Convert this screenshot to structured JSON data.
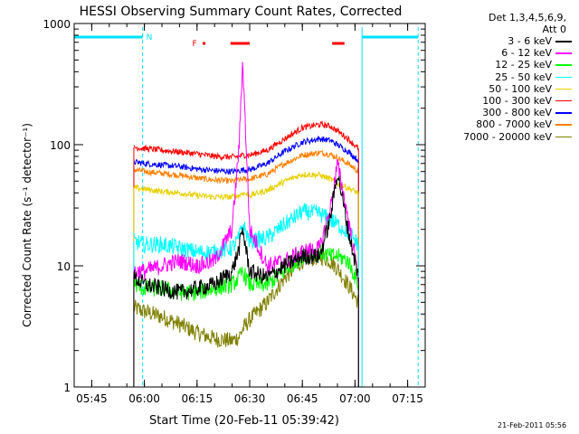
{
  "chart_data": {
    "type": "line",
    "title": "HESSI Observing Summary Count Rates, Corrected",
    "xlabel": "Start Time (20-Feb-11 05:39:42)",
    "ylabel": "Corrected Count Rate (s⁻¹ detector⁻¹)",
    "yscale": "log",
    "ylim": [
      1,
      1000
    ],
    "xlim": [
      "05:40",
      "07:20"
    ],
    "x_ticks": [
      "05:45",
      "06:00",
      "06:15",
      "06:30",
      "06:45",
      "07:00",
      "07:15"
    ],
    "y_ticks": [
      "1",
      "10",
      "100",
      "1000"
    ],
    "legend_position": "right",
    "legend_header": [
      "Det 1,3,4,5,6,9,",
      "Att 0"
    ],
    "times": [
      "05:57",
      "06:00",
      "06:05",
      "06:10",
      "06:15",
      "06:20",
      "06:25",
      "06:27",
      "06:28",
      "06:30",
      "06:35",
      "06:40",
      "06:45",
      "06:50",
      "06:53",
      "06:55",
      "06:58",
      "07:01"
    ],
    "series": [
      {
        "name": "3 - 6 keV",
        "color": "#000000",
        "values": [
          8,
          7,
          6.5,
          6,
          6.5,
          7,
          9,
          14,
          20,
          9,
          8,
          10,
          12,
          12,
          25,
          60,
          20,
          8
        ]
      },
      {
        "name": "6 - 12 keV",
        "color": "#ff00ff",
        "values": [
          9,
          9,
          10,
          11,
          10,
          11,
          20,
          100,
          500,
          20,
          10,
          11,
          13,
          14,
          30,
          70,
          25,
          8
        ]
      },
      {
        "name": "12 - 25 keV",
        "color": "#00ff00",
        "values": [
          7,
          6.5,
          6.5,
          6,
          6,
          6.5,
          7,
          8,
          9,
          7,
          7,
          9,
          12,
          13,
          12,
          12,
          11,
          7
        ]
      },
      {
        "name": "25 - 50 keV",
        "color": "#00ffff",
        "values": [
          16,
          15,
          15,
          14,
          13,
          13,
          14,
          17,
          22,
          16,
          17,
          22,
          28,
          27,
          24,
          22,
          19,
          15
        ]
      },
      {
        "name": "50 - 100 keV",
        "color": "#e8d000",
        "values": [
          44,
          43,
          41,
          40,
          38,
          37,
          37,
          38,
          40,
          38,
          42,
          50,
          57,
          56,
          52,
          48,
          44,
          40
        ]
      },
      {
        "name": "100 - 300 keV",
        "color": "#ff0000",
        "values": [
          95,
          93,
          90,
          87,
          84,
          80,
          79,
          80,
          82,
          82,
          90,
          112,
          138,
          147,
          142,
          130,
          112,
          92
        ]
      },
      {
        "name": "300 - 800 keV",
        "color": "#0000ff",
        "values": [
          72,
          70,
          68,
          66,
          63,
          61,
          60,
          61,
          62,
          62,
          70,
          88,
          105,
          112,
          108,
          100,
          88,
          74
        ]
      },
      {
        "name": "800 - 7000 keV",
        "color": "#ff8000",
        "values": [
          62,
          60,
          58,
          56,
          53,
          51,
          50,
          51,
          52,
          52,
          57,
          70,
          82,
          86,
          83,
          78,
          70,
          60
        ]
      },
      {
        "name": "7000 - 20000 keV",
        "color": "#808000",
        "values": [
          4.5,
          4.2,
          3.8,
          3.3,
          2.8,
          2.5,
          2.4,
          2.6,
          3.0,
          3.6,
          5.0,
          8.0,
          11,
          12,
          11,
          9.5,
          7.0,
          5.0
        ]
      }
    ],
    "flag_bars": {
      "N": {
        "label": "N",
        "color": "#00e0ff",
        "intervals": [
          [
            "05:40",
            "05:59:30"
          ],
          [
            "07:02",
            "07:18"
          ]
        ]
      },
      "F": {
        "label": "F",
        "color": "#ff0000",
        "intervals": [
          [
            "06:24:30",
            "06:30"
          ],
          [
            "06:53:30",
            "06:57"
          ]
        ],
        "points": [
          "06:17"
        ]
      }
    },
    "timestamp": "21-Feb-2011 05:56"
  }
}
